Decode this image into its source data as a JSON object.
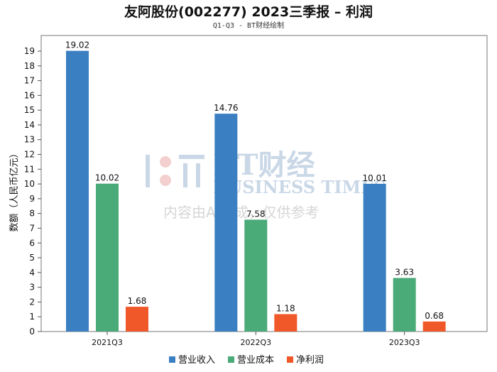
{
  "title": "友阿股份(002277) 2023三季报 – 利润",
  "subtitle": "Q1-Q3 - BT财经绘制",
  "watermark": {
    "logo": "BT财经",
    "brand": "BUSINESS TIMES",
    "note": "内容由AI生成，仅供参考"
  },
  "chart_data": {
    "type": "bar",
    "categories": [
      "2021Q3",
      "2022Q3",
      "2023Q3"
    ],
    "series": [
      {
        "name": "营业收入",
        "values": [
          19.02,
          14.76,
          10.01
        ],
        "color": "#3a7fc1"
      },
      {
        "name": "营业成本",
        "values": [
          10.02,
          7.58,
          3.63
        ],
        "color": "#4aaa78"
      },
      {
        "name": "净利润",
        "values": [
          1.68,
          1.18,
          0.68
        ],
        "color": "#f0582a"
      }
    ],
    "ylabel": "数额（人民币亿元）",
    "ylim": [
      0,
      19
    ],
    "yticks": [
      0,
      1,
      2,
      3,
      4,
      5,
      6,
      7,
      8,
      9,
      10,
      11,
      12,
      13,
      14,
      15,
      16,
      17,
      18,
      19
    ],
    "grid": false,
    "legend_position": "bottom-center"
  }
}
